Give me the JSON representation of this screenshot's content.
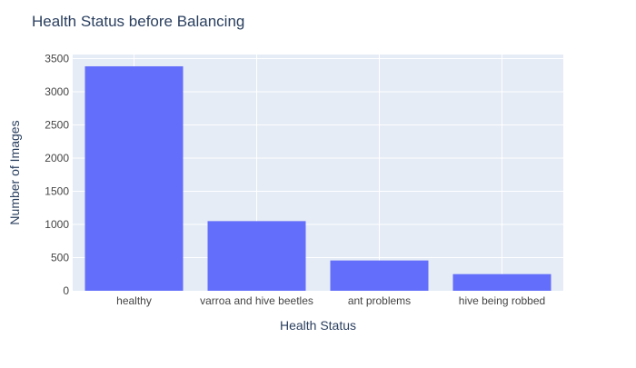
{
  "chart_data": {
    "type": "bar",
    "title": "Health Status before Balancing",
    "xlabel": "Health Status",
    "ylabel": "Number of Images",
    "categories": [
      "healthy",
      "varroa and hive beetles",
      "ant problems",
      "hive being robbed"
    ],
    "values": [
      3384,
      1050,
      457,
      251
    ],
    "ylim": [
      0,
      3562
    ],
    "yticks": [
      0,
      500,
      1000,
      1500,
      2000,
      2500,
      3000,
      3500
    ],
    "grid": true,
    "legend": "none",
    "colors": {
      "bar": "#636efa",
      "plot_background": "#e5ecf6",
      "grid": "#ffffff",
      "title_text": "#2a3f5f",
      "tick_text": "#444444"
    }
  }
}
